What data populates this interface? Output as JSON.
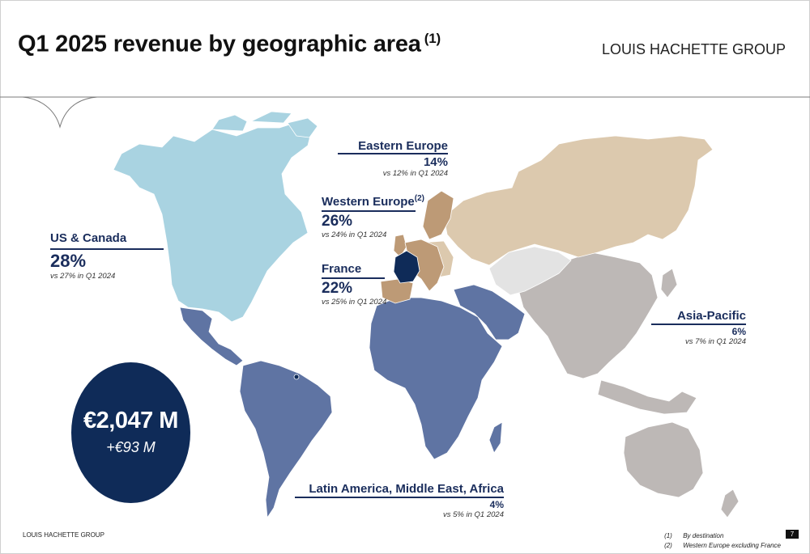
{
  "header": {
    "title": "Q1 2025 revenue by geographic area",
    "title_note": "(1)",
    "brand": "LOUIS HACHETTE GROUP"
  },
  "colors": {
    "us_canada": "#a9d3e1",
    "latam_mea": "#5f74a3",
    "asia_pacific": "#bdb8b6",
    "eastern_europe": "#dcc9ae",
    "western_europe": "#bd9a76",
    "france": "#0f2b58",
    "central_asia": "#e3e3e3",
    "navy_text": "#1a2d5c"
  },
  "regions": {
    "us_canada": {
      "name": "US & Canada",
      "share": "28%",
      "vs": "vs 27% in Q1 2024"
    },
    "eastern_europe": {
      "name": "Eastern Europe",
      "share": "14%",
      "vs": "vs 12% in Q1 2024"
    },
    "western_europe": {
      "name": "Western Europe",
      "note": "(2)",
      "share": "26%",
      "vs": "vs 24% in Q1 2024"
    },
    "france": {
      "name": "France",
      "share": "22%",
      "vs": "vs 25% in Q1 2024"
    },
    "asia_pacific": {
      "name": "Asia-Pacific",
      "share": "6%",
      "vs": "vs 7% in Q1 2024"
    },
    "latam_mea": {
      "name": "Latin America, Middle East, Africa",
      "share": "4%",
      "vs": "vs 5% in Q1 2024"
    }
  },
  "total": {
    "amount": "€2,047 M",
    "growth": "+€93 M"
  },
  "footer": {
    "brand": "LOUIS HACHETTE GROUP",
    "note1_marker": "(1)",
    "note1_text": "By destination",
    "note2_marker": "(2)",
    "note2_text": "Western Europe excluding France",
    "page": "7"
  }
}
